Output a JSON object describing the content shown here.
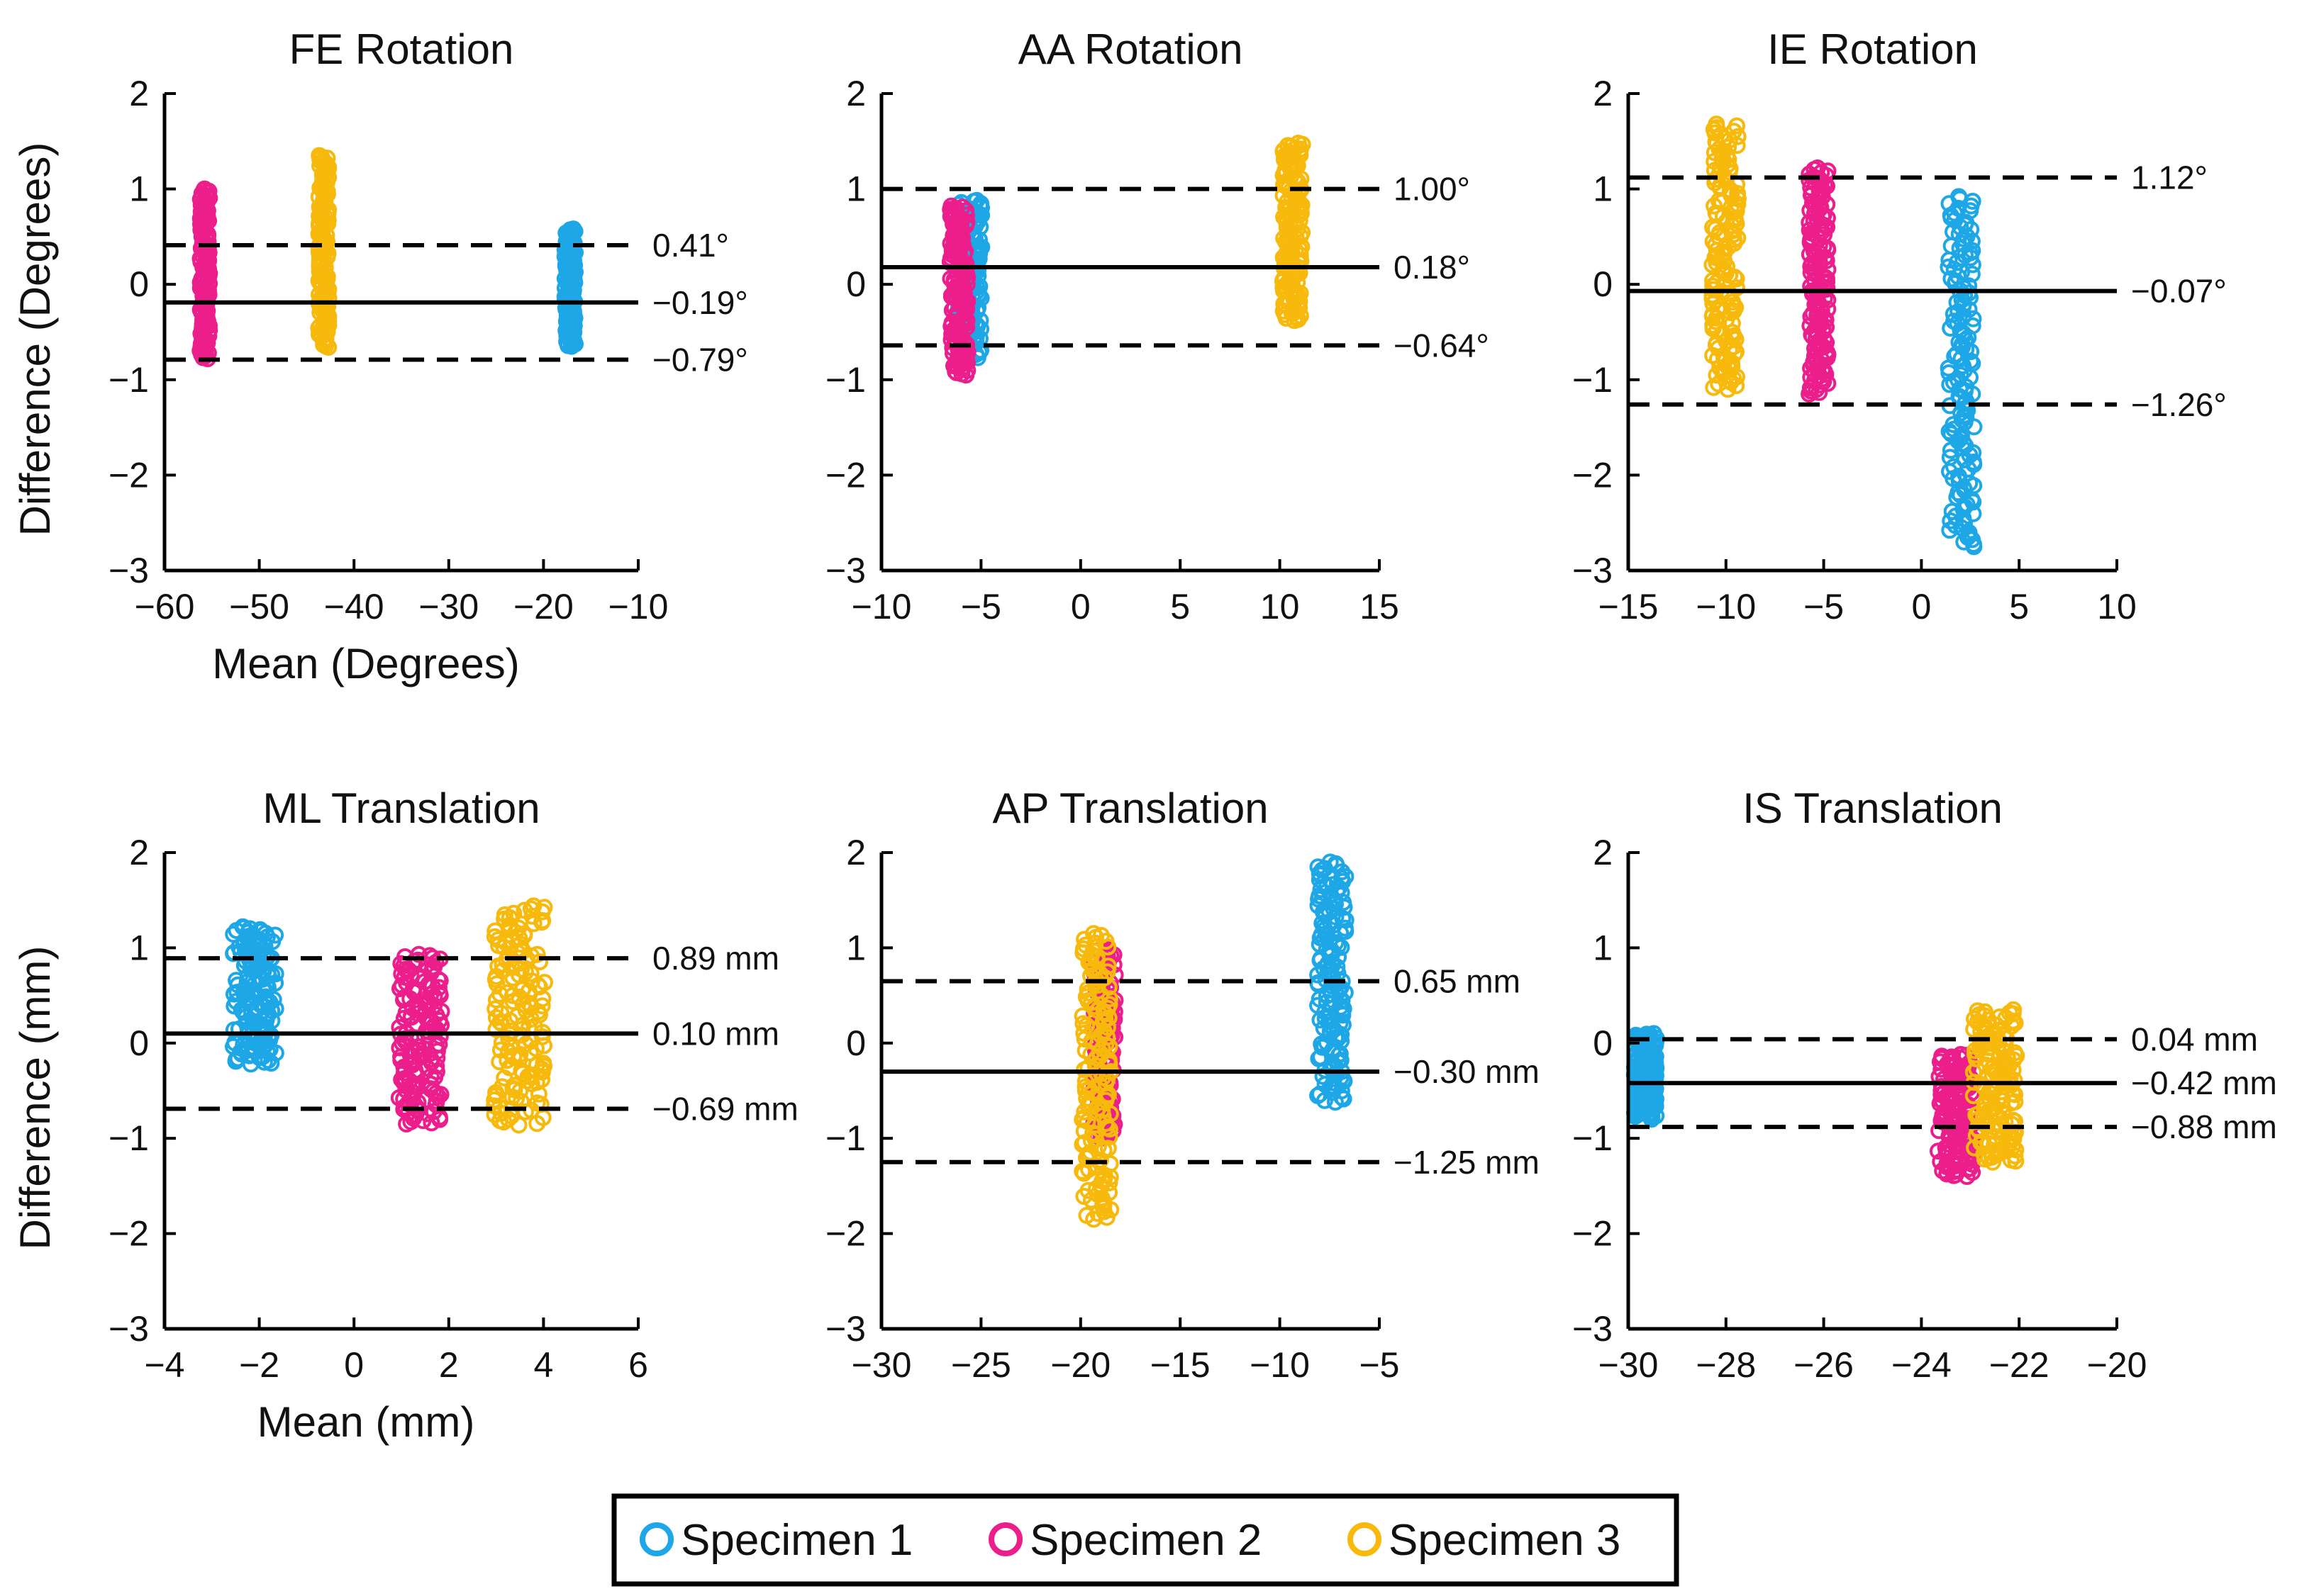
{
  "legend": {
    "items": [
      {
        "label": "Specimen 1",
        "color": "#1ea7e6"
      },
      {
        "label": "Specimen 2",
        "color": "#ec1e8c"
      },
      {
        "label": "Specimen 3",
        "color": "#f6b90c"
      }
    ]
  },
  "chart_data": [
    {
      "type": "scatter",
      "title": "FE Rotation",
      "xlabel": "Mean (Degrees)",
      "ylabel": "Difference (Degrees)",
      "xlim": [
        -60,
        -10
      ],
      "ylim": [
        -3,
        2
      ],
      "xticks": [
        -60,
        -50,
        -40,
        -30,
        -20,
        -10
      ],
      "xtick_labels": [
        "−60",
        "−50",
        "−40",
        "−30",
        "−20",
        "−10"
      ],
      "yticks": [
        -3,
        -2,
        -1,
        0,
        1,
        2
      ],
      "ytick_labels": [
        "−3",
        "−2",
        "−1",
        "0",
        "1",
        "2"
      ],
      "lines": [
        {
          "name": "upper limit",
          "y": 0.41,
          "label": "0.41°",
          "dashed": true
        },
        {
          "name": "mean difference",
          "y": -0.19,
          "label": "−0.19°",
          "dashed": false
        },
        {
          "name": "lower limit",
          "y": -0.79,
          "label": "−0.79°",
          "dashed": true
        }
      ],
      "series": [
        {
          "name": "Specimen 1",
          "x_range": [
            -17.8,
            -16.6
          ],
          "y_range": [
            -0.65,
            0.58
          ]
        },
        {
          "name": "Specimen 2",
          "x_range": [
            -56.3,
            -55.2
          ],
          "y_range": [
            -0.78,
            1.0
          ]
        },
        {
          "name": "Specimen 3",
          "x_range": [
            -43.8,
            -42.6
          ],
          "y_range": [
            -0.66,
            1.35
          ]
        }
      ]
    },
    {
      "type": "scatter",
      "title": "AA Rotation",
      "xlabel": "",
      "ylabel": "",
      "xlim": [
        -10,
        15
      ],
      "ylim": [
        -3,
        2
      ],
      "xticks": [
        -10,
        -5,
        0,
        5,
        10,
        15
      ],
      "xtick_labels": [
        "−10",
        "−5",
        "0",
        "5",
        "10",
        "15"
      ],
      "yticks": [
        -3,
        -2,
        -1,
        0,
        1,
        2
      ],
      "ytick_labels": [
        "−3",
        "−2",
        "−1",
        "0",
        "1",
        "2"
      ],
      "lines": [
        {
          "name": "upper limit",
          "y": 1.0,
          "label": "1.00°",
          "dashed": true
        },
        {
          "name": "mean difference",
          "y": 0.18,
          "label": "0.18°",
          "dashed": false
        },
        {
          "name": "lower limit",
          "y": -0.64,
          "label": "−0.64°",
          "dashed": true
        }
      ],
      "series": [
        {
          "name": "Specimen 1",
          "x_range": [
            -6.2,
            -4.9
          ],
          "y_range": [
            -0.78,
            0.88
          ]
        },
        {
          "name": "Specimen 2",
          "x_range": [
            -6.6,
            -5.6
          ],
          "y_range": [
            -0.95,
            0.82
          ]
        },
        {
          "name": "Specimen 3",
          "x_range": [
            10.1,
            11.2
          ],
          "y_range": [
            -0.38,
            1.48
          ]
        }
      ]
    },
    {
      "type": "scatter",
      "title": "IE Rotation",
      "xlabel": "",
      "ylabel": "",
      "xlim": [
        -15,
        10
      ],
      "ylim": [
        -3,
        2
      ],
      "xticks": [
        -15,
        -10,
        -5,
        0,
        5,
        10
      ],
      "xtick_labels": [
        "−15",
        "−10",
        "−5",
        "0",
        "5",
        "10"
      ],
      "yticks": [
        -3,
        -2,
        -1,
        0,
        1,
        2
      ],
      "ytick_labels": [
        "−3",
        "−2",
        "−1",
        "0",
        "1",
        "2"
      ],
      "lines": [
        {
          "name": "upper limit",
          "y": 1.12,
          "label": "1.12°",
          "dashed": true
        },
        {
          "name": "mean difference",
          "y": -0.07,
          "label": "−0.07°",
          "dashed": false
        },
        {
          "name": "lower limit",
          "y": -1.26,
          "label": "−1.26°",
          "dashed": true
        }
      ],
      "series": [
        {
          "name": "Specimen 1",
          "x_range": [
            1.3,
            2.8
          ],
          "y_range": [
            -2.75,
            0.92
          ]
        },
        {
          "name": "Specimen 2",
          "x_range": [
            -5.8,
            -4.7
          ],
          "y_range": [
            -1.15,
            1.22
          ]
        },
        {
          "name": "Specimen 3",
          "x_range": [
            -10.8,
            -9.3
          ],
          "y_range": [
            -1.1,
            1.68
          ]
        }
      ]
    },
    {
      "type": "scatter",
      "title": "ML Translation",
      "xlabel": "Mean (mm)",
      "ylabel": "Difference (mm)",
      "xlim": [
        -4,
        6
      ],
      "ylim": [
        -3,
        2
      ],
      "xticks": [
        -4,
        -2,
        0,
        2,
        4,
        6
      ],
      "xtick_labels": [
        "−4",
        "−2",
        "0",
        "2",
        "4",
        "6"
      ],
      "yticks": [
        -3,
        -2,
        -1,
        0,
        1,
        2
      ],
      "ytick_labels": [
        "−3",
        "−2",
        "−1",
        "0",
        "1",
        "2"
      ],
      "lines": [
        {
          "name": "upper limit",
          "y": 0.89,
          "label": "0.89 mm",
          "dashed": true
        },
        {
          "name": "mean difference",
          "y": 0.1,
          "label": "0.10 mm",
          "dashed": false
        },
        {
          "name": "lower limit",
          "y": -0.69,
          "label": "−0.69 mm",
          "dashed": true
        }
      ],
      "series": [
        {
          "name": "Specimen 1",
          "x_range": [
            -2.6,
            -1.6
          ],
          "y_range": [
            -0.22,
            1.22
          ]
        },
        {
          "name": "Specimen 2",
          "x_range": [
            0.9,
            1.9
          ],
          "y_range": [
            -0.85,
            0.93
          ]
        },
        {
          "name": "Specimen 3",
          "x_range": [
            2.9,
            4.1
          ],
          "y_range": [
            -0.86,
            1.44
          ]
        }
      ]
    },
    {
      "type": "scatter",
      "title": "AP Translation",
      "xlabel": "",
      "ylabel": "",
      "xlim": [
        -30,
        -5
      ],
      "ylim": [
        -3,
        2
      ],
      "xticks": [
        -30,
        -25,
        -20,
        -15,
        -10,
        -5
      ],
      "xtick_labels": [
        "−30",
        "−25",
        "−20",
        "−15",
        "−10",
        "−5"
      ],
      "yticks": [
        -3,
        -2,
        -1,
        0,
        1,
        2
      ],
      "ytick_labels": [
        "−3",
        "−2",
        "−1",
        "0",
        "1",
        "2"
      ],
      "lines": [
        {
          "name": "upper limit",
          "y": 0.65,
          "label": "0.65 mm",
          "dashed": true
        },
        {
          "name": "mean difference",
          "y": -0.3,
          "label": "−0.30 mm",
          "dashed": false
        },
        {
          "name": "lower limit",
          "y": -1.25,
          "label": "−1.25 mm",
          "dashed": true
        }
      ],
      "series": [
        {
          "name": "Specimen 1",
          "x_range": [
            -8.2,
            -6.6
          ],
          "y_range": [
            -0.62,
            1.9
          ]
        },
        {
          "name": "Specimen 2",
          "x_range": [
            -19.4,
            -18.2
          ],
          "y_range": [
            -1.0,
            0.98
          ]
        },
        {
          "name": "Specimen 3",
          "x_range": [
            -20.0,
            -18.4
          ],
          "y_range": [
            -1.85,
            1.15
          ]
        }
      ]
    },
    {
      "type": "scatter",
      "title": "IS Translation",
      "xlabel": "",
      "ylabel": "",
      "xlim": [
        -30,
        -20
      ],
      "ylim": [
        -3,
        2
      ],
      "xticks": [
        -30,
        -28,
        -26,
        -24,
        -22,
        -20
      ],
      "xtick_labels": [
        "−30",
        "−28",
        "−26",
        "−24",
        "−22",
        "−20"
      ],
      "yticks": [
        -3,
        -2,
        -1,
        0,
        1,
        2
      ],
      "ytick_labels": [
        "−3",
        "−2",
        "−1",
        "0",
        "1",
        "2"
      ],
      "lines": [
        {
          "name": "upper limit",
          "y": 0.04,
          "label": "0.04 mm",
          "dashed": true
        },
        {
          "name": "mean difference",
          "y": -0.42,
          "label": "−0.42 mm",
          "dashed": false
        },
        {
          "name": "lower limit",
          "y": -0.88,
          "label": "−0.88 mm",
          "dashed": true
        }
      ],
      "series": [
        {
          "name": "Specimen 1",
          "x_range": [
            -29.9,
            -29.4
          ],
          "y_range": [
            -0.8,
            0.1
          ]
        },
        {
          "name": "Specimen 2",
          "x_range": [
            -23.7,
            -22.9
          ],
          "y_range": [
            -1.4,
            -0.12
          ]
        },
        {
          "name": "Specimen 3",
          "x_range": [
            -23.0,
            -22.0
          ],
          "y_range": [
            -1.25,
            0.35
          ]
        }
      ]
    }
  ]
}
